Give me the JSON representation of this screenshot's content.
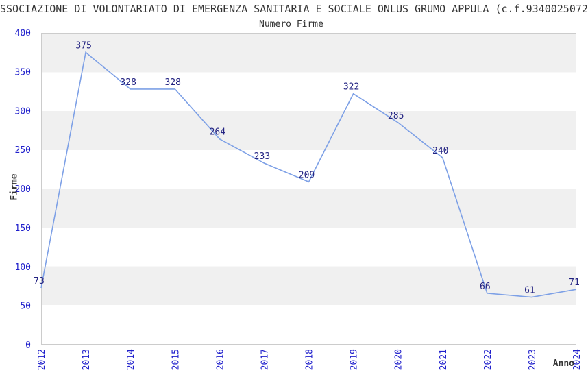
{
  "chart_data": {
    "type": "line",
    "title": "SSOCIAZIONE DI VOLONTARIATO DI EMERGENZA SANITARIA E SOCIALE ONLUS GRUMO APPULA (c.f.9340025072",
    "subtitle": "Numero Firme",
    "xlabel": "Anno",
    "ylabel": "Firme",
    "categories": [
      "2012",
      "2013",
      "2014",
      "2015",
      "2016",
      "2017",
      "2018",
      "2019",
      "2020",
      "2021",
      "2022",
      "2023",
      "2024"
    ],
    "series": [
      {
        "name": "Numero Firme",
        "values": [
          73,
          375,
          328,
          328,
          264,
          233,
          209,
          322,
          285,
          240,
          66,
          61,
          71
        ]
      }
    ],
    "ylim": [
      0,
      400
    ],
    "yticks": [
      0,
      50,
      100,
      150,
      200,
      250,
      300,
      350,
      400
    ],
    "grid": "alternating horizontal bands every 50 units, grey band from 350-400 downward alternating",
    "legend": "none",
    "data_labels": "shown above each point",
    "x_tick_rotation_deg": 90,
    "colors": {
      "line": "#7da0e6",
      "data_label": "#232382",
      "tick_label": "#2020cc",
      "band_grey": "#f0f0f0",
      "band_white": "#ffffff",
      "plot_border": "#cccccc",
      "text": "#333333",
      "background": "#ffffff"
    }
  }
}
